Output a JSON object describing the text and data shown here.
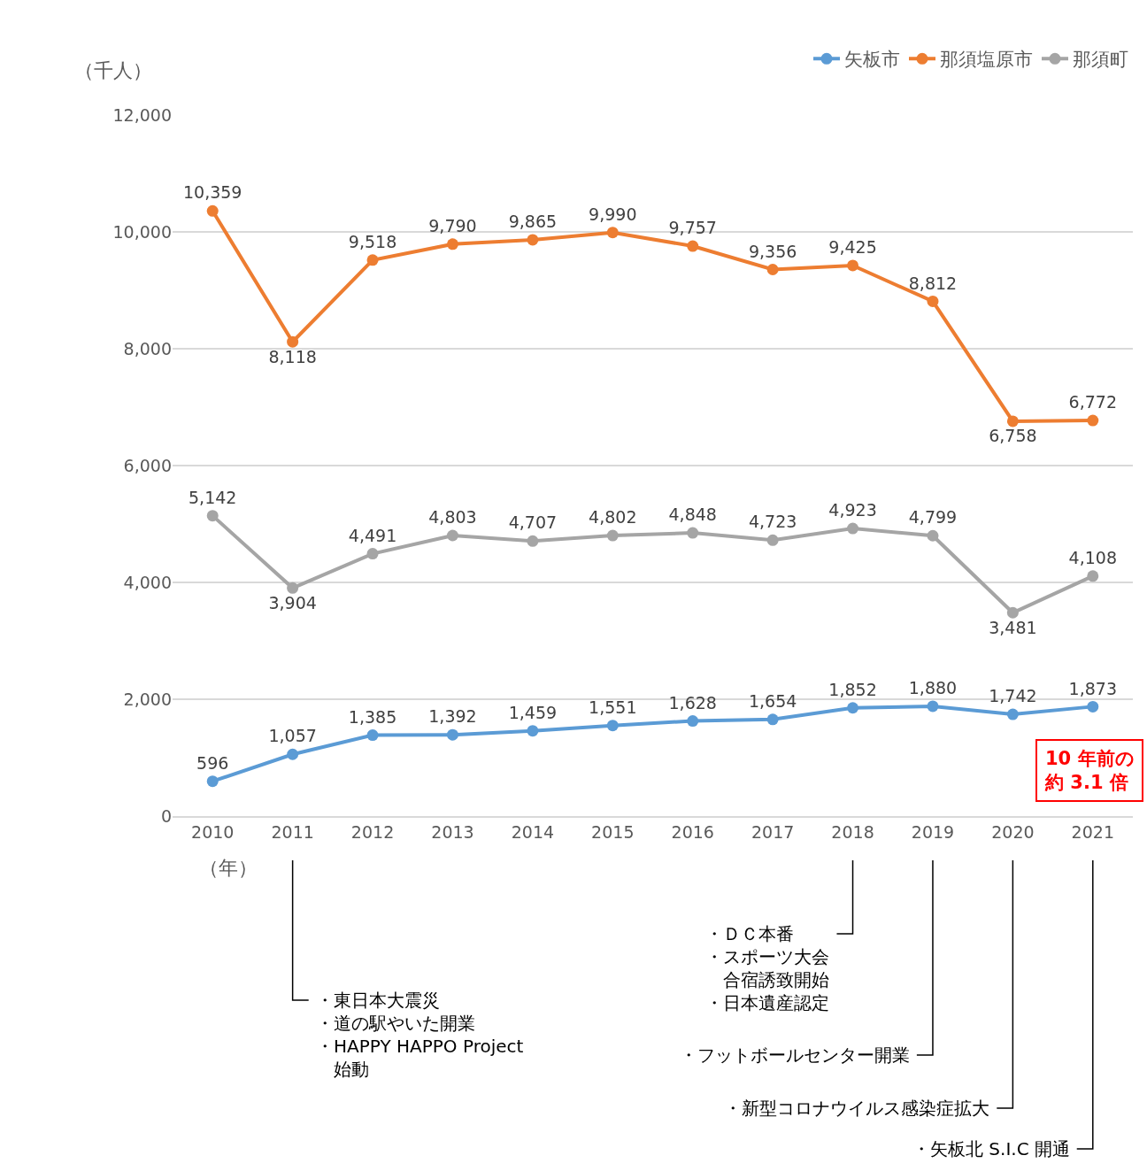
{
  "chart_data": {
    "type": "line",
    "ylabel": "（千人）",
    "xlabel": "（年）",
    "categories": [
      "2010",
      "2011",
      "2012",
      "2013",
      "2014",
      "2015",
      "2016",
      "2017",
      "2018",
      "2019",
      "2020",
      "2021"
    ],
    "series": [
      {
        "name": "矢板市",
        "color": "#5b9bd5",
        "values": [
          596,
          1057,
          1385,
          1392,
          1459,
          1551,
          1628,
          1654,
          1852,
          1880,
          1742,
          1873
        ],
        "value_labels": [
          "596",
          "1,057",
          "1,385",
          "1,392",
          "1,459",
          "1,551",
          "1,628",
          "1,654",
          "1,852",
          "1,880",
          "1,742",
          "1,873"
        ]
      },
      {
        "name": "那須塩原市",
        "color": "#ed7d31",
        "values": [
          10359,
          8118,
          9518,
          9790,
          9865,
          9990,
          9757,
          9356,
          9425,
          8812,
          6758,
          6772
        ],
        "value_labels": [
          "10,359",
          "8,118",
          "9,518",
          "9,790",
          "9,865",
          "9,990",
          "9,757",
          "9,356",
          "9,425",
          "8,812",
          "6,758",
          "6,772"
        ]
      },
      {
        "name": "那須町",
        "color": "#a5a5a5",
        "values": [
          5142,
          3904,
          4491,
          4803,
          4707,
          4802,
          4848,
          4723,
          4923,
          4799,
          3481,
          4108
        ],
        "value_labels": [
          "5,142",
          "3,904",
          "4,491",
          "4,803",
          "4,707",
          "4,802",
          "4,848",
          "4,723",
          "4,923",
          "4,799",
          "3,481",
          "4,108"
        ]
      }
    ],
    "ylim": [
      0,
      12000
    ],
    "yticks": [
      0,
      {
        "value": 2000,
        "label": "2,000"
      },
      {
        "value": 4000,
        "label": "4,000"
      },
      {
        "value": 6000,
        "label": "6,000"
      },
      {
        "value": 8000,
        "label": "8,000"
      },
      {
        "value": 10000,
        "label": "10,000"
      },
      {
        "value": 12000,
        "label": "12,000"
      }
    ],
    "grid": "y",
    "legend": "top right",
    "marker": "circle",
    "line_style": "solid",
    "annotations": [
      "・東日本大震災",
      "・道の駅やいた開業",
      "・HAPPY HAPPO Project",
      "　始動",
      "・ＤＣ本番",
      "・スポーツ大会",
      "　合宿誘致開始",
      "・日本遺産認定",
      "・フットボールセンター開業",
      "・新型コロナウイルス感染症拡大",
      "・矢板北 S.I.C 開通",
      "10 年前の",
      "約 3.1 倍"
    ]
  }
}
